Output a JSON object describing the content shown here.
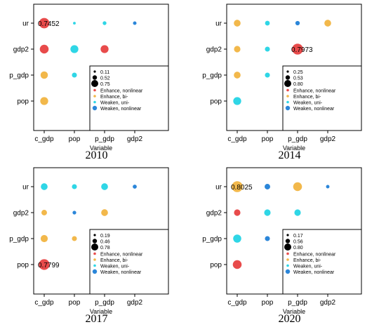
{
  "colors": {
    "enhance_nonlinear": "#e84b4b",
    "enhance_bi": "#f2b84b",
    "weaken_uni": "#2fd6e6",
    "weaken_nonlinear": "#2b86d9"
  },
  "chart_data": [
    {
      "type": "scatter",
      "title": "2010",
      "xlabel": "Variable",
      "ylabel": "",
      "x_categories": [
        "c_gdp",
        "pop",
        "p_gdp",
        "gdp2"
      ],
      "y_categories": [
        "pop",
        "p_gdp",
        "gdp2",
        "ur"
      ],
      "size_legend": [
        "0.11",
        "0.52",
        "0.75"
      ],
      "legend_labels": [
        "Enhance, nonlinear",
        "Enhance, bi-",
        "Weaken, uni-",
        "Weaken, nonlinear"
      ],
      "label": {
        "text": "0.7452",
        "x": "c_gdp",
        "y": "ur"
      },
      "points": [
        {
          "x": "c_gdp",
          "y": "ur",
          "value": 0.75,
          "type": "enhance_nonlinear"
        },
        {
          "x": "pop",
          "y": "ur",
          "value": 0.11,
          "type": "weaken_uni"
        },
        {
          "x": "p_gdp",
          "y": "ur",
          "value": 0.2,
          "type": "weaken_uni"
        },
        {
          "x": "gdp2",
          "y": "ur",
          "value": 0.18,
          "type": "weaken_nonlinear"
        },
        {
          "x": "c_gdp",
          "y": "gdp2",
          "value": 0.62,
          "type": "enhance_nonlinear"
        },
        {
          "x": "pop",
          "y": "gdp2",
          "value": 0.55,
          "type": "weaken_uni"
        },
        {
          "x": "p_gdp",
          "y": "gdp2",
          "value": 0.55,
          "type": "enhance_nonlinear"
        },
        {
          "x": "c_gdp",
          "y": "p_gdp",
          "value": 0.5,
          "type": "enhance_bi"
        },
        {
          "x": "pop",
          "y": "p_gdp",
          "value": 0.3,
          "type": "weaken_uni"
        },
        {
          "x": "c_gdp",
          "y": "pop",
          "value": 0.55,
          "type": "enhance_bi"
        }
      ]
    },
    {
      "type": "scatter",
      "title": "2014",
      "xlabel": "Variable",
      "ylabel": "",
      "x_categories": [
        "c_gdp",
        "pop",
        "p_gdp",
        "gdp2"
      ],
      "y_categories": [
        "pop",
        "p_gdp",
        "gdp2",
        "ur"
      ],
      "size_legend": [
        "0.25",
        "0.53",
        "0.80"
      ],
      "legend_labels": [
        "Enhance, nonlinear",
        "Enhance, bi-",
        "Weaken, uni-",
        "Weaken, nonlinear"
      ],
      "label": {
        "text": "0.7973",
        "x": "p_gdp",
        "y": "gdp2"
      },
      "points": [
        {
          "x": "c_gdp",
          "y": "ur",
          "value": 0.45,
          "type": "enhance_bi"
        },
        {
          "x": "pop",
          "y": "ur",
          "value": 0.28,
          "type": "weaken_uni"
        },
        {
          "x": "p_gdp",
          "y": "ur",
          "value": 0.25,
          "type": "weaken_nonlinear"
        },
        {
          "x": "gdp2",
          "y": "ur",
          "value": 0.45,
          "type": "enhance_bi"
        },
        {
          "x": "c_gdp",
          "y": "gdp2",
          "value": 0.42,
          "type": "enhance_bi"
        },
        {
          "x": "pop",
          "y": "gdp2",
          "value": 0.3,
          "type": "weaken_uni"
        },
        {
          "x": "p_gdp",
          "y": "gdp2",
          "value": 0.8,
          "type": "enhance_nonlinear"
        },
        {
          "x": "c_gdp",
          "y": "p_gdp",
          "value": 0.45,
          "type": "enhance_bi"
        },
        {
          "x": "pop",
          "y": "p_gdp",
          "value": 0.3,
          "type": "weaken_uni"
        },
        {
          "x": "c_gdp",
          "y": "pop",
          "value": 0.55,
          "type": "weaken_uni"
        }
      ]
    },
    {
      "type": "scatter",
      "title": "2017",
      "xlabel": "Variable",
      "ylabel": "",
      "x_categories": [
        "c_gdp",
        "pop",
        "p_gdp",
        "gdp2"
      ],
      "y_categories": [
        "pop",
        "p_gdp",
        "gdp2",
        "ur"
      ],
      "size_legend": [
        "0.19",
        "0.46",
        "0.78"
      ],
      "legend_labels": [
        "Enhance, nonlinear",
        "Enhance, bi-",
        "Weaken, uni-",
        "Weaken, nonlinear"
      ],
      "label": {
        "text": "0.7799",
        "x": "c_gdp",
        "y": "pop"
      },
      "points": [
        {
          "x": "c_gdp",
          "y": "ur",
          "value": 0.45,
          "type": "weaken_uni"
        },
        {
          "x": "pop",
          "y": "ur",
          "value": 0.3,
          "type": "weaken_uni"
        },
        {
          "x": "p_gdp",
          "y": "ur",
          "value": 0.45,
          "type": "weaken_uni"
        },
        {
          "x": "gdp2",
          "y": "ur",
          "value": 0.22,
          "type": "weaken_nonlinear"
        },
        {
          "x": "c_gdp",
          "y": "gdp2",
          "value": 0.35,
          "type": "enhance_bi"
        },
        {
          "x": "pop",
          "y": "gdp2",
          "value": 0.19,
          "type": "weaken_nonlinear"
        },
        {
          "x": "p_gdp",
          "y": "gdp2",
          "value": 0.45,
          "type": "enhance_bi"
        },
        {
          "x": "c_gdp",
          "y": "p_gdp",
          "value": 0.48,
          "type": "enhance_bi"
        },
        {
          "x": "pop",
          "y": "p_gdp",
          "value": 0.3,
          "type": "enhance_bi"
        },
        {
          "x": "c_gdp",
          "y": "pop",
          "value": 0.78,
          "type": "enhance_nonlinear"
        }
      ]
    },
    {
      "type": "scatter",
      "title": "2020",
      "xlabel": "Variable",
      "ylabel": "",
      "x_categories": [
        "c_gdp",
        "pop",
        "p_gdp",
        "gdp2"
      ],
      "y_categories": [
        "pop",
        "p_gdp",
        "gdp2",
        "ur"
      ],
      "size_legend": [
        "0.17",
        "0.56",
        "0.80"
      ],
      "legend_labels": [
        "Enhance, nonlinear",
        "Enhance, bi-",
        "Weaken, uni-",
        "Weaken, nonlinear"
      ],
      "label": {
        "text": "0.8025",
        "x": "c_gdp",
        "y": "ur"
      },
      "points": [
        {
          "x": "c_gdp",
          "y": "ur",
          "value": 0.8,
          "type": "enhance_bi"
        },
        {
          "x": "pop",
          "y": "ur",
          "value": 0.35,
          "type": "weaken_nonlinear"
        },
        {
          "x": "p_gdp",
          "y": "ur",
          "value": 0.62,
          "type": "enhance_bi"
        },
        {
          "x": "gdp2",
          "y": "ur",
          "value": 0.17,
          "type": "weaken_nonlinear"
        },
        {
          "x": "c_gdp",
          "y": "gdp2",
          "value": 0.42,
          "type": "enhance_nonlinear"
        },
        {
          "x": "pop",
          "y": "gdp2",
          "value": 0.42,
          "type": "weaken_uni"
        },
        {
          "x": "p_gdp",
          "y": "gdp2",
          "value": 0.42,
          "type": "weaken_uni"
        },
        {
          "x": "c_gdp",
          "y": "p_gdp",
          "value": 0.56,
          "type": "weaken_uni"
        },
        {
          "x": "pop",
          "y": "p_gdp",
          "value": 0.3,
          "type": "weaken_nonlinear"
        },
        {
          "x": "c_gdp",
          "y": "pop",
          "value": 0.62,
          "type": "enhance_nonlinear"
        }
      ]
    }
  ]
}
